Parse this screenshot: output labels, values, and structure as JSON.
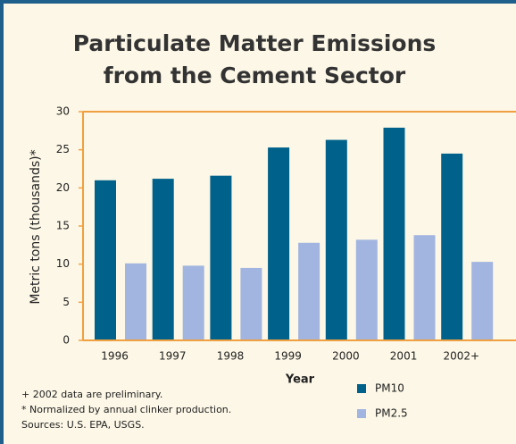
{
  "chart_data": {
    "type": "bar",
    "title": [
      "Particulate Matter Emissions",
      "from the Cement Sector"
    ],
    "ylabel": "Metric tons (thousands)*",
    "xlabel": "Year",
    "categories": [
      "1996",
      "1997",
      "1998",
      "1999",
      "2000",
      "2001",
      "2002+"
    ],
    "series": [
      {
        "name": "PM10",
        "color": "#00628a",
        "values": [
          21.0,
          21.2,
          21.6,
          25.3,
          26.3,
          27.9,
          24.5
        ]
      },
      {
        "name": "PM2.5",
        "color": "#a2b5e0",
        "values": [
          10.1,
          9.8,
          9.5,
          12.8,
          13.2,
          13.8,
          10.3
        ]
      }
    ],
    "ylim": [
      0,
      30
    ],
    "yticks": [
      0,
      5,
      10,
      15,
      20,
      25,
      30
    ],
    "notes": [
      "+ 2002 data are preliminary.",
      "* Normalized by annual clinker production.",
      "Sources: U.S. EPA, USGS."
    ]
  }
}
